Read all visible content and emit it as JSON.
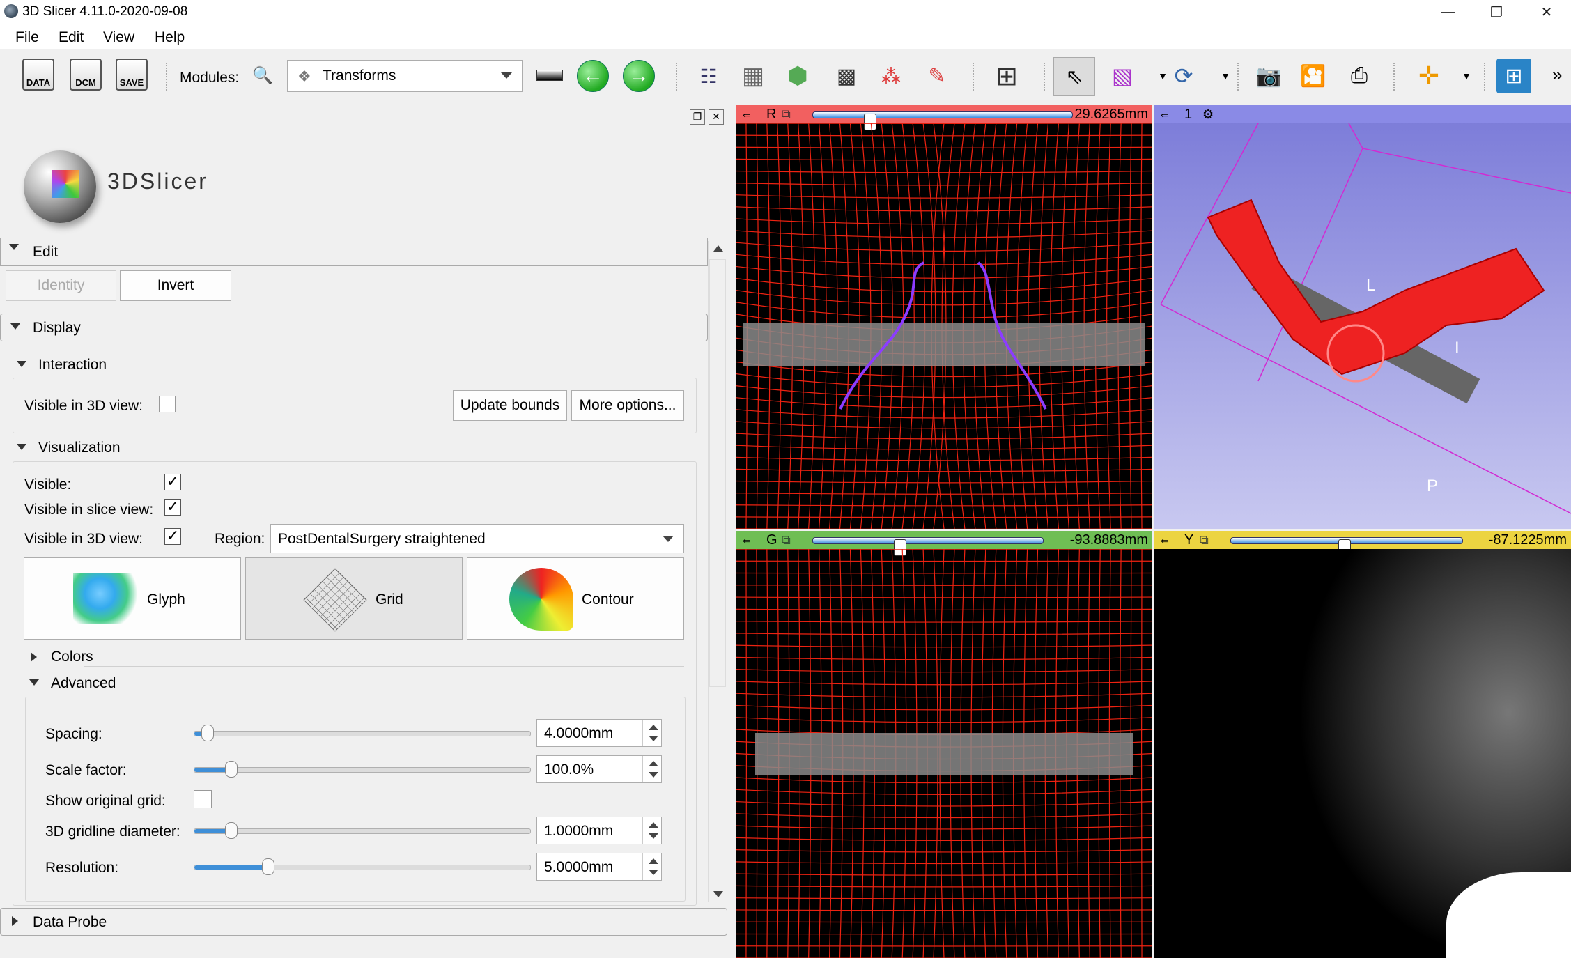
{
  "window": {
    "title": "3D Slicer 4.11.0-2020-09-08",
    "minimize": "—",
    "restore": "❐",
    "close": "✕"
  },
  "menu": [
    "File",
    "Edit",
    "View",
    "Help"
  ],
  "toolbar": {
    "data_icons": [
      "DATA",
      "DCM",
      "SAVE"
    ],
    "modules_label": "Modules:",
    "module_selected": "Transforms",
    "more": "»"
  },
  "logo": {
    "text": "3DSlicer"
  },
  "edit_section": {
    "title": "Edit",
    "identity": "Identity",
    "invert": "Invert"
  },
  "display_section": {
    "title": "Display",
    "interaction": {
      "title": "Interaction",
      "visible_3d_label": "Visible in 3D view:",
      "visible_3d_checked": false,
      "update_bounds": "Update bounds",
      "more_options": "More options..."
    },
    "visualization": {
      "title": "Visualization",
      "visible_label": "Visible:",
      "visible_checked": true,
      "visible_slice_label": "Visible in slice view:",
      "visible_slice_checked": true,
      "visible_3d_label": "Visible in 3D view:",
      "visible_3d_checked": true,
      "region_label": "Region:",
      "region_value": "PostDentalSurgery straightened",
      "modes": [
        "Glyph",
        "Grid",
        "Contour"
      ],
      "selected_mode": "Grid"
    },
    "colors": {
      "title": "Colors"
    },
    "advanced": {
      "title": "Advanced",
      "spacing_label": "Spacing:",
      "spacing_value": "4.0000mm",
      "spacing_slider": 0.04,
      "scale_label": "Scale factor:",
      "scale_value": "100.0%",
      "scale_slider": 0.11,
      "show_original_label": "Show original grid:",
      "show_original_checked": false,
      "gridline_label": "3D gridline diameter:",
      "gridline_value": "1.0000mm",
      "gridline_slider": 0.11,
      "resolution_label": "Resolution:",
      "resolution_value": "5.0000mm",
      "resolution_slider": 0.22
    }
  },
  "data_probe": {
    "title": "Data Probe"
  },
  "views": {
    "red": {
      "letter": "R",
      "offset": "29.6265mm",
      "color": "#f26060",
      "slider": 0.22
    },
    "threed": {
      "letter": "1",
      "color": "#8a8ae6",
      "labels": [
        "L",
        "I",
        "P"
      ]
    },
    "green": {
      "letter": "G",
      "offset": "-93.8883mm",
      "color": "#6fbe54",
      "slider": 0.38
    },
    "yellow": {
      "letter": "Y",
      "offset": "-87.1225mm",
      "color": "#ecd441",
      "slider": 0.49
    }
  }
}
